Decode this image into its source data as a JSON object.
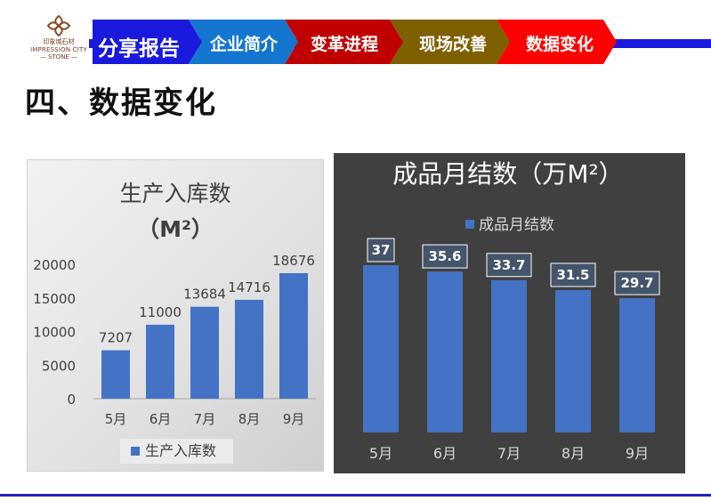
{
  "logo": {
    "line1": "印象城石材",
    "line2": "IMPRESSION CITY",
    "line3": "— STONE —"
  },
  "nav": {
    "items": [
      {
        "label": "分享报告",
        "color": "#1a1adc"
      },
      {
        "label": "企业简介",
        "color": "#1576d0"
      },
      {
        "label": "变革进程",
        "color": "#c00000"
      },
      {
        "label": "现场改善",
        "color": "#7f6000"
      },
      {
        "label": "数据变化",
        "color": "#ff0000"
      }
    ]
  },
  "page": {
    "title": "四、数据变化"
  },
  "chart_data": [
    {
      "type": "bar",
      "title": "生产入库数",
      "subtitle": "（M²）",
      "categories": [
        "5月",
        "6月",
        "7月",
        "8月",
        "9月"
      ],
      "series": [
        {
          "name": "生产入库数",
          "values": [
            7207,
            11000,
            13684,
            14716,
            18676
          ]
        }
      ],
      "ylim": [
        0,
        20000
      ],
      "yticks": [
        "0",
        "5000",
        "10000",
        "15000",
        "20000"
      ],
      "grid": false,
      "legend": "bottom",
      "bar_color": "#4472c4"
    },
    {
      "type": "bar",
      "title": "成品月结数（万M²）",
      "categories": [
        "5月",
        "6月",
        "7月",
        "8月",
        "9月"
      ],
      "series": [
        {
          "name": "成品月结数",
          "values": [
            37,
            35.6,
            33.7,
            31.5,
            29.7
          ]
        }
      ],
      "grid": false,
      "legend": "top",
      "bar_color": "#4472c4",
      "background": "#404040"
    }
  ]
}
